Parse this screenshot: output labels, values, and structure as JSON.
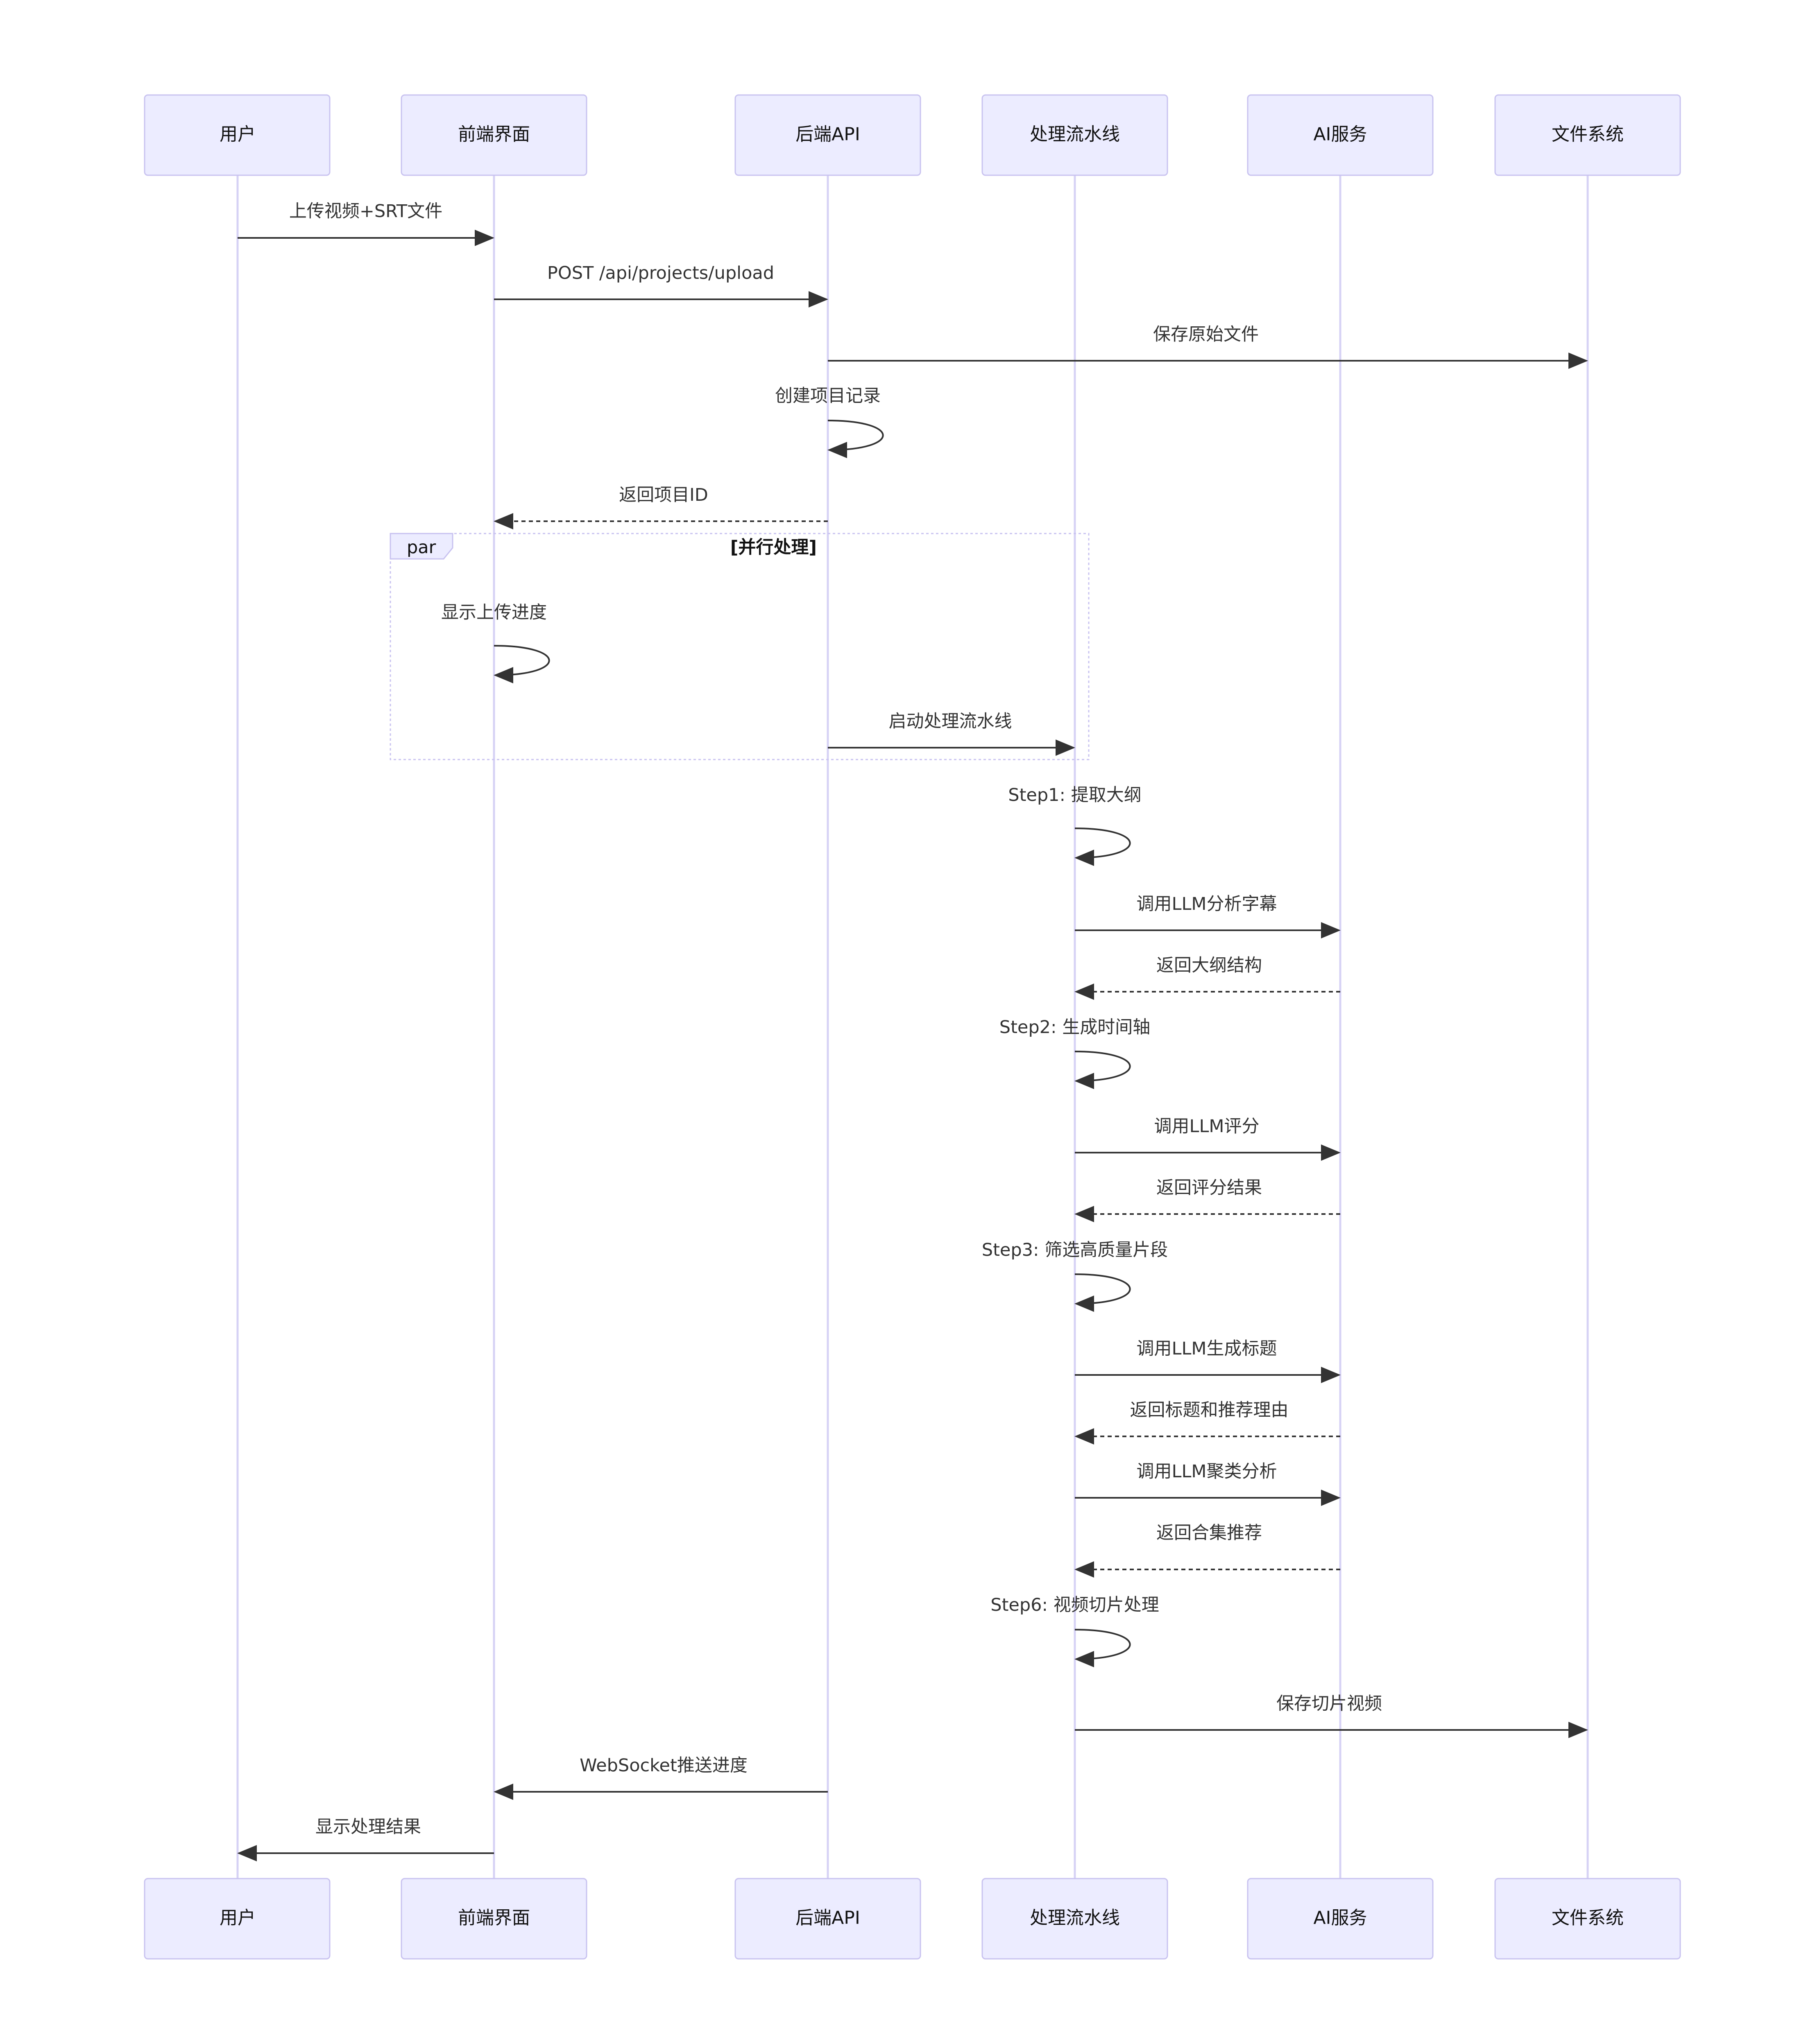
{
  "actors": [
    {
      "id": "user",
      "label": "用户"
    },
    {
      "id": "frontend",
      "label": "前端界面"
    },
    {
      "id": "backend",
      "label": "后端API"
    },
    {
      "id": "pipeline",
      "label": "处理流水线"
    },
    {
      "id": "ai",
      "label": "AI服务"
    },
    {
      "id": "fs",
      "label": "文件系统"
    }
  ],
  "messages": [
    {
      "from": "user",
      "to": "frontend",
      "label": "上传视频+SRT文件",
      "style": "solid"
    },
    {
      "from": "frontend",
      "to": "backend",
      "label": "POST /api/projects/upload",
      "style": "solid"
    },
    {
      "from": "backend",
      "to": "fs",
      "label": "保存原始文件",
      "style": "solid"
    },
    {
      "from": "backend",
      "to": "backend",
      "label": "创建项目记录",
      "style": "self"
    },
    {
      "from": "backend",
      "to": "frontend",
      "label": "返回项目ID",
      "style": "dashed"
    },
    {
      "from": "frontend",
      "to": "frontend",
      "label": "显示上传进度",
      "style": "self"
    },
    {
      "from": "backend",
      "to": "pipeline",
      "label": "启动处理流水线",
      "style": "solid"
    },
    {
      "from": "pipeline",
      "to": "pipeline",
      "label": "Step1: 提取大纲",
      "style": "self"
    },
    {
      "from": "pipeline",
      "to": "ai",
      "label": "调用LLM分析字幕",
      "style": "solid"
    },
    {
      "from": "ai",
      "to": "pipeline",
      "label": "返回大纲结构",
      "style": "dashed"
    },
    {
      "from": "pipeline",
      "to": "pipeline",
      "label": "Step2: 生成时间轴",
      "style": "self"
    },
    {
      "from": "pipeline",
      "to": "ai",
      "label": "调用LLM评分",
      "style": "solid"
    },
    {
      "from": "ai",
      "to": "pipeline",
      "label": "返回评分结果",
      "style": "dashed"
    },
    {
      "from": "pipeline",
      "to": "pipeline",
      "label": "Step3: 筛选高质量片段",
      "style": "self"
    },
    {
      "from": "pipeline",
      "to": "ai",
      "label": "调用LLM生成标题",
      "style": "solid"
    },
    {
      "from": "ai",
      "to": "pipeline",
      "label": "返回标题和推荐理由",
      "style": "dashed"
    },
    {
      "from": "pipeline",
      "to": "ai",
      "label": "调用LLM聚类分析",
      "style": "solid"
    },
    {
      "from": "ai",
      "to": "pipeline",
      "label": "返回合集推荐",
      "style": "dashed"
    },
    {
      "from": "pipeline",
      "to": "pipeline",
      "label": "Step6: 视频切片处理",
      "style": "self"
    },
    {
      "from": "pipeline",
      "to": "fs",
      "label": "保存切片视频",
      "style": "solid"
    },
    {
      "from": "backend",
      "to": "frontend",
      "label": "WebSocket推送进度",
      "style": "solid"
    },
    {
      "from": "frontend",
      "to": "user",
      "label": "显示处理结果",
      "style": "solid"
    }
  ],
  "par_block": {
    "label": "par",
    "condition": "[并行处理]"
  },
  "colors": {
    "actor_fill": "#ECECFF",
    "actor_border": "#C9C3F0",
    "lifeline": "#D6D2F5",
    "arrow": "#333333"
  }
}
